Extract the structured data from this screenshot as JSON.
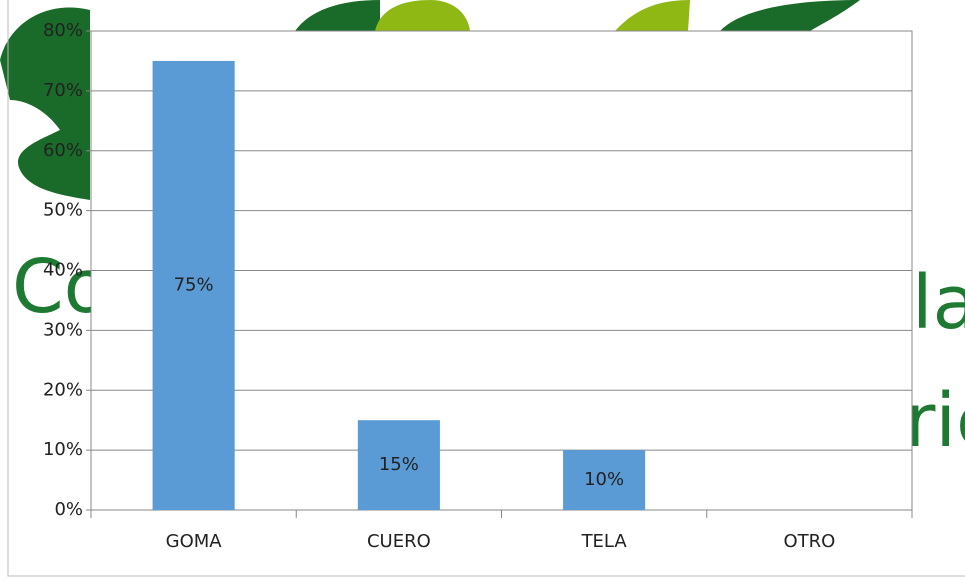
{
  "background_text": [
    "Co",
    "la",
    "ric"
  ],
  "chart_data": {
    "type": "bar",
    "categories": [
      "GOMA",
      "CUERO",
      "TELA",
      "OTRO"
    ],
    "values": [
      75,
      15,
      10,
      0
    ],
    "value_labels": [
      "75%",
      "15%",
      "10%",
      null
    ],
    "color": "#5b9bd5",
    "ylim": [
      0,
      80
    ],
    "yticks": [
      {
        "value": 0,
        "label": "0%"
      },
      {
        "value": 10,
        "label": "10%"
      },
      {
        "value": 20,
        "label": "20%"
      },
      {
        "value": 30,
        "label": "30%"
      },
      {
        "value": 40,
        "label": "40%"
      },
      {
        "value": 50,
        "label": "50%"
      },
      {
        "value": 60,
        "label": "60%"
      },
      {
        "value": 70,
        "label": "70%"
      },
      {
        "value": 80,
        "label": "80%"
      }
    ],
    "grid": true
  }
}
